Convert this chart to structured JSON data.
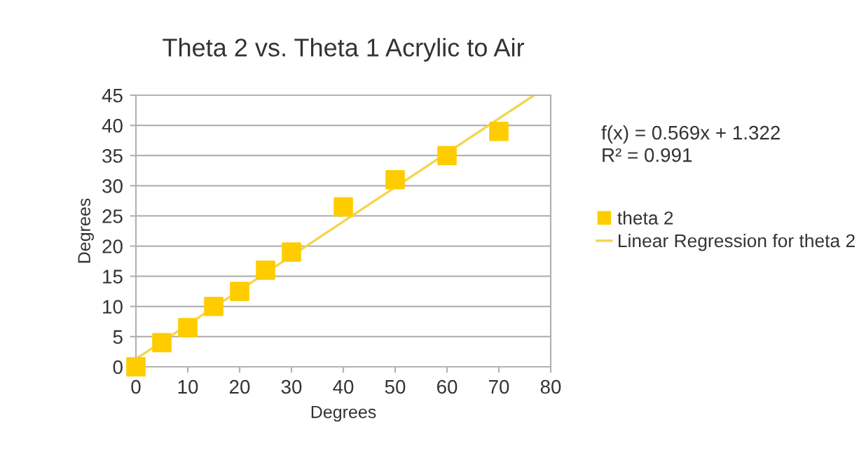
{
  "chart_data": {
    "type": "scatter",
    "title": "Theta 2 vs. Theta 1 Acrylic to Air",
    "xlabel": "Degrees",
    "ylabel": "Degrees",
    "series": [
      {
        "name": "theta 2",
        "color": "#ffcc00",
        "marker": "square",
        "x": [
          0,
          5,
          10,
          15,
          20,
          25,
          30,
          40,
          50,
          60,
          70
        ],
        "values": [
          0,
          4,
          6.5,
          10,
          12.5,
          16,
          19,
          26.5,
          31,
          35,
          39
        ]
      },
      {
        "name": "Linear Regression for theta 2",
        "type": "line",
        "color": "#f2d64d",
        "x": [
          0,
          76.8
        ],
        "values": [
          1.3,
          45
        ]
      }
    ],
    "annotations": [
      "f(x) = 0.569x + 1.322",
      "R² = 0.991"
    ],
    "xlim": [
      0,
      80
    ],
    "xticks": [
      0,
      10,
      20,
      30,
      40,
      50,
      60,
      70,
      80
    ],
    "ylim": [
      0,
      45
    ],
    "yticks": [
      0,
      5,
      10,
      15,
      20,
      25,
      30,
      35,
      40,
      45
    ],
    "grid": "y",
    "legend": "right"
  }
}
